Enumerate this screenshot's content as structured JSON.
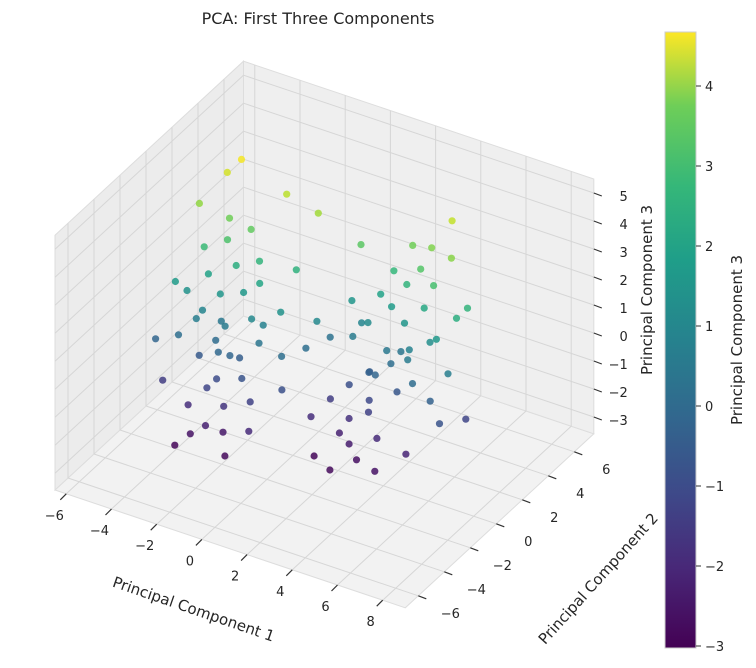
{
  "chart_data": {
    "type": "scatter",
    "projection": "3d",
    "title": "PCA: First Three Components",
    "xlabel": "Principal Component 1",
    "ylabel": "Principal Component 2",
    "zlabel": "Principal Component 3",
    "xlim": [
      -6.5,
      9
    ],
    "ylim": [
      -7,
      7.5
    ],
    "zlim": [
      -3.6,
      5.5
    ],
    "xticks": [
      -6,
      -4,
      -2,
      0,
      2,
      4,
      6,
      8
    ],
    "yticks": [
      -6,
      -4,
      -2,
      0,
      2,
      4,
      6
    ],
    "zticks": [
      -3,
      -2,
      -1,
      0,
      1,
      2,
      3,
      4,
      5
    ],
    "grid": true,
    "colormap": "viridis",
    "colorbar": {
      "label": "Principal Component 3",
      "range": [
        -3,
        4.7
      ],
      "ticks": [
        -3,
        -2,
        -1,
        0,
        1,
        2,
        3,
        4
      ]
    },
    "points": [
      [
        -3,
        0,
        0.2
      ],
      [
        -3.5,
        0.5,
        1.0
      ],
      [
        -2.5,
        -0.5,
        -0.5
      ],
      [
        -4,
        0,
        0.5
      ],
      [
        -3.2,
        1.2,
        1.8
      ],
      [
        -2.8,
        -1,
        -1.2
      ],
      [
        -3.8,
        -0.6,
        -0.8
      ],
      [
        -2,
        0.3,
        0.6
      ],
      [
        -4.5,
        1,
        2.2
      ],
      [
        -3,
        2,
        2.8
      ],
      [
        -2.2,
        -1.5,
        -1.8
      ],
      [
        -3.6,
        -1.8,
        -2.0
      ],
      [
        -1.5,
        0,
        0
      ],
      [
        -4.2,
        0.8,
        1.4
      ],
      [
        -2.7,
        0.9,
        1.1
      ],
      [
        -3.3,
        -0.2,
        -0.3
      ],
      [
        -1.8,
        -0.8,
        -1.0
      ],
      [
        -4.8,
        0.2,
        0.9
      ],
      [
        -2.4,
        1.6,
        2.0
      ],
      [
        -3.9,
        1.9,
        3.0
      ],
      [
        -5,
        1.5,
        3.4
      ],
      [
        -4.4,
        2.6,
        4.2
      ],
      [
        -3.1,
        -2.5,
        -2.6
      ],
      [
        -2.6,
        -2.2,
        -2.3
      ],
      [
        -1.2,
        -1.2,
        -1.5
      ],
      [
        -1,
        0.8,
        0.9
      ],
      [
        -0.5,
        0,
        -0.2
      ],
      [
        -0.8,
        -2,
        -2.1
      ],
      [
        -3.4,
        0.4,
        0.1
      ],
      [
        -2.9,
        -0.7,
        -0.4
      ],
      [
        -4.1,
        -0.3,
        0.3
      ],
      [
        -2.1,
        1.1,
        1.5
      ],
      [
        -3.7,
        1.4,
        2.5
      ],
      [
        -1.6,
        0.5,
        0.4
      ],
      [
        -2.3,
        -0.1,
        -0.7
      ],
      [
        -4.6,
        -0.8,
        -0.2
      ],
      [
        -5.2,
        0,
        1.2
      ],
      [
        -3,
        -1.4,
        -1.4
      ],
      [
        -2,
        -1.9,
        -2.5
      ],
      [
        -1.4,
        -2.8,
        -2.8
      ],
      [
        3,
        2,
        0.1
      ],
      [
        3.5,
        2.5,
        1.0
      ],
      [
        2.5,
        1.5,
        -0.6
      ],
      [
        4,
        2,
        0.4
      ],
      [
        3.2,
        3.2,
        2.0
      ],
      [
        2.8,
        1,
        -1.3
      ],
      [
        3.8,
        1.4,
        -0.9
      ],
      [
        2,
        2.3,
        0.7
      ],
      [
        4.5,
        3,
        2.4
      ],
      [
        3,
        4,
        3.0
      ],
      [
        2.2,
        0.5,
        -1.9
      ],
      [
        3.6,
        0.2,
        -2.1
      ],
      [
        1.5,
        2,
        0.2
      ],
      [
        4.2,
        2.8,
        1.6
      ],
      [
        2.7,
        2.9,
        1.2
      ],
      [
        3.3,
        1.8,
        -0.2
      ],
      [
        1.8,
        1.2,
        -1.1
      ],
      [
        4.8,
        2.2,
        0.8
      ],
      [
        2.4,
        3.6,
        2.1
      ],
      [
        3.9,
        3.9,
        3.2
      ],
      [
        5,
        3.5,
        3.3
      ],
      [
        4.4,
        4.6,
        4.0
      ],
      [
        3.1,
        -0.5,
        -2.7
      ],
      [
        2.6,
        -0.2,
        -2.4
      ],
      [
        1.2,
        0.8,
        -1.6
      ],
      [
        1,
        2.8,
        1.0
      ],
      [
        0.5,
        2,
        -0.1
      ],
      [
        0.8,
        0,
        -2.0
      ],
      [
        3.4,
        2.4,
        0.0
      ],
      [
        2.9,
        1.3,
        -0.5
      ],
      [
        4.1,
        1.7,
        0.2
      ],
      [
        2.1,
        3.1,
        1.4
      ],
      [
        3.7,
        3.4,
        2.6
      ],
      [
        1.6,
        2.5,
        0.5
      ],
      [
        2.3,
        1.9,
        -0.8
      ],
      [
        4.6,
        1.2,
        -0.3
      ],
      [
        5.2,
        2,
        1.1
      ],
      [
        3,
        0.6,
        -1.5
      ],
      [
        2,
        0.1,
        -2.3
      ],
      [
        1.4,
        -0.8,
        -2.9
      ],
      [
        5.5,
        1,
        -0.6
      ],
      [
        6,
        1.5,
        0.3
      ],
      [
        6.2,
        0.5,
        -1.0
      ],
      [
        5.8,
        2.5,
        1.8
      ],
      [
        0,
        1,
        -0.2
      ],
      [
        -0.2,
        -0.5,
        -1.1
      ],
      [
        0.2,
        1.5,
        0.6
      ],
      [
        -1,
        2,
        1.9
      ],
      [
        1,
        3.5,
        2.7
      ],
      [
        -0.6,
        3,
        3.6
      ],
      [
        -5.5,
        -1,
        -0.5
      ],
      [
        -4.9,
        -1.5,
        -1.6
      ],
      [
        -2,
        3,
        3.9
      ],
      [
        -4,
        3,
        4.6
      ],
      [
        4.2,
        -1,
        -2.6
      ],
      [
        5,
        0,
        -2.2
      ],
      [
        6.5,
        2,
        -1.4
      ],
      [
        6,
        3,
        2.0
      ],
      [
        -3.5,
        -3,
        -2.9
      ],
      [
        2.5,
        -1.5,
        -2.8
      ]
    ]
  }
}
